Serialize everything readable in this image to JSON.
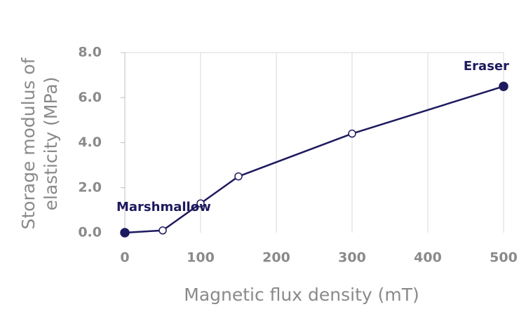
{
  "chart_data": {
    "type": "line",
    "x": [
      0,
      50,
      100,
      150,
      300,
      500
    ],
    "series": [
      {
        "color": "#1e1a5e",
        "values": [
          0,
          0.1,
          1.3,
          2.5,
          4.4,
          6.5
        ]
      }
    ],
    "xlabel": "Magnetic flux density (mT)",
    "ylabel": [
      "Storage modulus of",
      "elasticity (MPa)"
    ],
    "xlim": [
      0,
      500
    ],
    "xticks": [
      0,
      100,
      200,
      300,
      400,
      500
    ],
    "ylim": [
      0,
      8
    ],
    "yticks": [
      {
        "value": 0,
        "label": "0.0"
      },
      {
        "value": 2,
        "label": "2.0"
      },
      {
        "value": 4,
        "label": "4.0"
      },
      {
        "value": 6,
        "label": "6.0"
      },
      {
        "value": 8,
        "label": "8.0"
      }
    ],
    "grid": "x",
    "annotations": [
      {
        "text": "Marshmallow",
        "x": 0
      },
      {
        "text": "Eraser",
        "x": 500
      }
    ]
  }
}
